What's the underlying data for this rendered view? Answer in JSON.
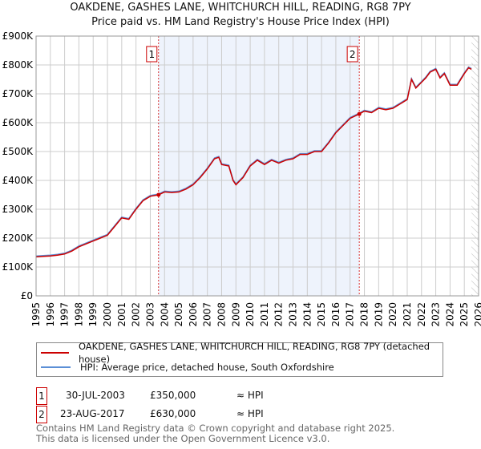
{
  "chart_data": {
    "type": "line",
    "title": "OAKDENE, GASHES LANE, WHITCHURCH HILL, READING, RG8 7PY",
    "subtitle": "Price paid vs. HM Land Registry's House Price Index (HPI)",
    "xlim": [
      1995,
      2026
    ],
    "ylim": [
      0,
      900000
    ],
    "y_ticks": [
      {
        "v": 0,
        "label": "£0"
      },
      {
        "v": 100000,
        "label": "£100K"
      },
      {
        "v": 200000,
        "label": "£200K"
      },
      {
        "v": 300000,
        "label": "£300K"
      },
      {
        "v": 400000,
        "label": "£400K"
      },
      {
        "v": 500000,
        "label": "£500K"
      },
      {
        "v": 600000,
        "label": "£600K"
      },
      {
        "v": 700000,
        "label": "£700K"
      },
      {
        "v": 800000,
        "label": "£800K"
      },
      {
        "v": 900000,
        "label": "£900K"
      }
    ],
    "x_ticks": [
      "1995",
      "1996",
      "1997",
      "1998",
      "1999",
      "2000",
      "2001",
      "2002",
      "2003",
      "2004",
      "2005",
      "2006",
      "2007",
      "2008",
      "2009",
      "2010",
      "2011",
      "2012",
      "2013",
      "2014",
      "2015",
      "2016",
      "2017",
      "2018",
      "2019",
      "2020",
      "2021",
      "2022",
      "2023",
      "2024",
      "2025",
      "2026"
    ],
    "grid": true,
    "shaded_range": [
      2003.58,
      2017.64
    ],
    "hatched_from": 2025.5,
    "colors": {
      "property": "#cc0000",
      "hpi": "#5b8fd6",
      "shade": "#eef3fc",
      "marker": "#cc0000"
    },
    "series": [
      {
        "name": "OAKDENE, GASHES LANE, WHITCHURCH HILL, READING, RG8 7PY (detached house)",
        "color": "#cc0000",
        "x": [
          1995,
          1995.5,
          1996,
          1996.5,
          1997,
          1997.5,
          1998,
          1998.5,
          1999,
          1999.5,
          2000,
          2000.5,
          2001,
          2001.5,
          2002,
          2002.5,
          2003,
          2003.58,
          2004,
          2004.5,
          2005,
          2005.5,
          2006,
          2006.5,
          2007,
          2007.5,
          2007.8,
          2008,
          2008.5,
          2008.8,
          2009,
          2009.5,
          2010,
          2010.5,
          2011,
          2011.5,
          2012,
          2012.5,
          2013,
          2013.5,
          2014,
          2014.5,
          2015,
          2015.5,
          2016,
          2016.5,
          2017,
          2017.64,
          2018,
          2018.5,
          2019,
          2019.5,
          2020,
          2020.5,
          2021,
          2021.3,
          2021.6,
          2022,
          2022.3,
          2022.6,
          2023,
          2023.3,
          2023.6,
          2024,
          2024.5,
          2025,
          2025.3,
          2025.5
        ],
        "values": [
          135000,
          137000,
          138000,
          141000,
          145000,
          155000,
          170000,
          180000,
          190000,
          200000,
          210000,
          240000,
          270000,
          265000,
          300000,
          330000,
          345000,
          350000,
          360000,
          358000,
          360000,
          370000,
          385000,
          410000,
          440000,
          475000,
          480000,
          455000,
          450000,
          400000,
          385000,
          410000,
          450000,
          470000,
          455000,
          470000,
          460000,
          470000,
          475000,
          490000,
          490000,
          500000,
          500000,
          530000,
          565000,
          590000,
          615000,
          630000,
          640000,
          635000,
          650000,
          645000,
          650000,
          665000,
          680000,
          750000,
          720000,
          740000,
          755000,
          775000,
          785000,
          755000,
          770000,
          730000,
          730000,
          770000,
          790000,
          785000
        ]
      },
      {
        "name": "HPI: Average price, detached house, South Oxfordshire",
        "color": "#5b8fd6"
      }
    ],
    "sales": [
      {
        "id": "1",
        "x": 2003.58,
        "date": "30-JUL-2003",
        "price": "£350,000",
        "value": 350000,
        "vs_hpi": "≈ HPI"
      },
      {
        "id": "2",
        "x": 2017.64,
        "date": "23-AUG-2017",
        "price": "£630,000",
        "value": 630000,
        "vs_hpi": "≈ HPI"
      }
    ]
  },
  "footer": {
    "line1": "Contains HM Land Registry data © Crown copyright and database right 2025.",
    "line2": "This data is licensed under the Open Government Licence v3.0."
  }
}
